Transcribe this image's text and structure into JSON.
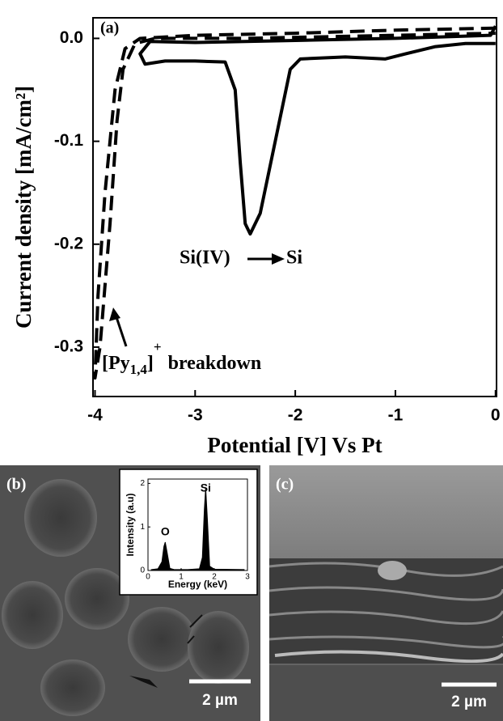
{
  "chart_data": [
    {
      "type": "line",
      "panel_label": "(a)",
      "x_label": "Potential [V] Vs Pt",
      "y_label": "Current density [mA/cm²]",
      "xlim": [
        -4.02,
        0.01
      ],
      "ylim": [
        -0.348,
        0.02
      ],
      "xticks": [
        -4,
        -3,
        -2,
        -1,
        0
      ],
      "yticks": [
        {
          "value": 0,
          "label": "0.0"
        },
        -0.1,
        -0.2,
        -0.3
      ],
      "series": [
        {
          "color": "#000000",
          "dash": false,
          "x": [
            0,
            -0.05,
            -1,
            -2,
            -3,
            -3.45,
            -3.55,
            -3.5,
            -3.3,
            -3.0,
            -2.7,
            -2.6,
            -2.55,
            -2.5,
            -2.45,
            -2.35,
            -2.2,
            -2.05,
            -1.95,
            -1.5,
            -1.1,
            -0.9,
            -0.6,
            -0.3,
            0
          ],
          "values": [
            0.012,
            0.003,
            0.0,
            -0.002,
            -0.004,
            -0.003,
            -0.015,
            -0.025,
            -0.022,
            -0.022,
            -0.023,
            -0.05,
            -0.12,
            -0.18,
            -0.19,
            -0.17,
            -0.1,
            -0.03,
            -0.02,
            -0.018,
            -0.02,
            -0.015,
            -0.008,
            -0.005,
            -0.005
          ]
        },
        {
          "color": "#000000",
          "dash": true,
          "x": [
            0,
            -1,
            -2,
            -3,
            -3.55,
            -3.7,
            -3.8,
            -3.9,
            -3.97,
            -4.0,
            -3.95,
            -3.85,
            -3.78,
            -3.72,
            -3.6,
            -3.4,
            -2.5,
            -1,
            0
          ],
          "values": [
            0.01,
            0.008,
            0.005,
            0.003,
            0.0,
            -0.01,
            -0.05,
            -0.15,
            -0.25,
            -0.33,
            -0.3,
            -0.18,
            -0.08,
            -0.03,
            -0.005,
            0.0,
            0.0,
            0.003,
            0.005
          ]
        }
      ],
      "annotations": [
        "Si(IV)",
        "Si",
        "[Py",
        "1,4",
        "]",
        "+",
        "breakdown"
      ]
    },
    {
      "type": "area",
      "x_label": "Energy (keV)",
      "y_label": "Intensity (a.u)",
      "xlim": [
        0,
        3
      ],
      "ylim": [
        0,
        2.1
      ],
      "xticks": [
        0,
        1,
        2,
        3
      ],
      "yticks": [
        0,
        1,
        2
      ],
      "series": [
        {
          "color": "#000000",
          "x": [
            0.1,
            0.3,
            0.42,
            0.48,
            0.52,
            0.58,
            0.66,
            0.8,
            1.2,
            1.55,
            1.64,
            1.7,
            1.74,
            1.79,
            1.86,
            2.0,
            2.9
          ],
          "values": [
            0.02,
            0.04,
            0.2,
            0.55,
            0.65,
            0.4,
            0.05,
            0.02,
            0.02,
            0.04,
            0.3,
            1.4,
            1.9,
            1.2,
            0.1,
            0.03,
            0.02
          ]
        }
      ],
      "annotations": [
        "O",
        "Si"
      ]
    }
  ],
  "panels": [
    {
      "label": "(b)",
      "scale_bar": "2 µm"
    },
    {
      "label": "(c)",
      "scale_bar": "2 µm"
    }
  ]
}
